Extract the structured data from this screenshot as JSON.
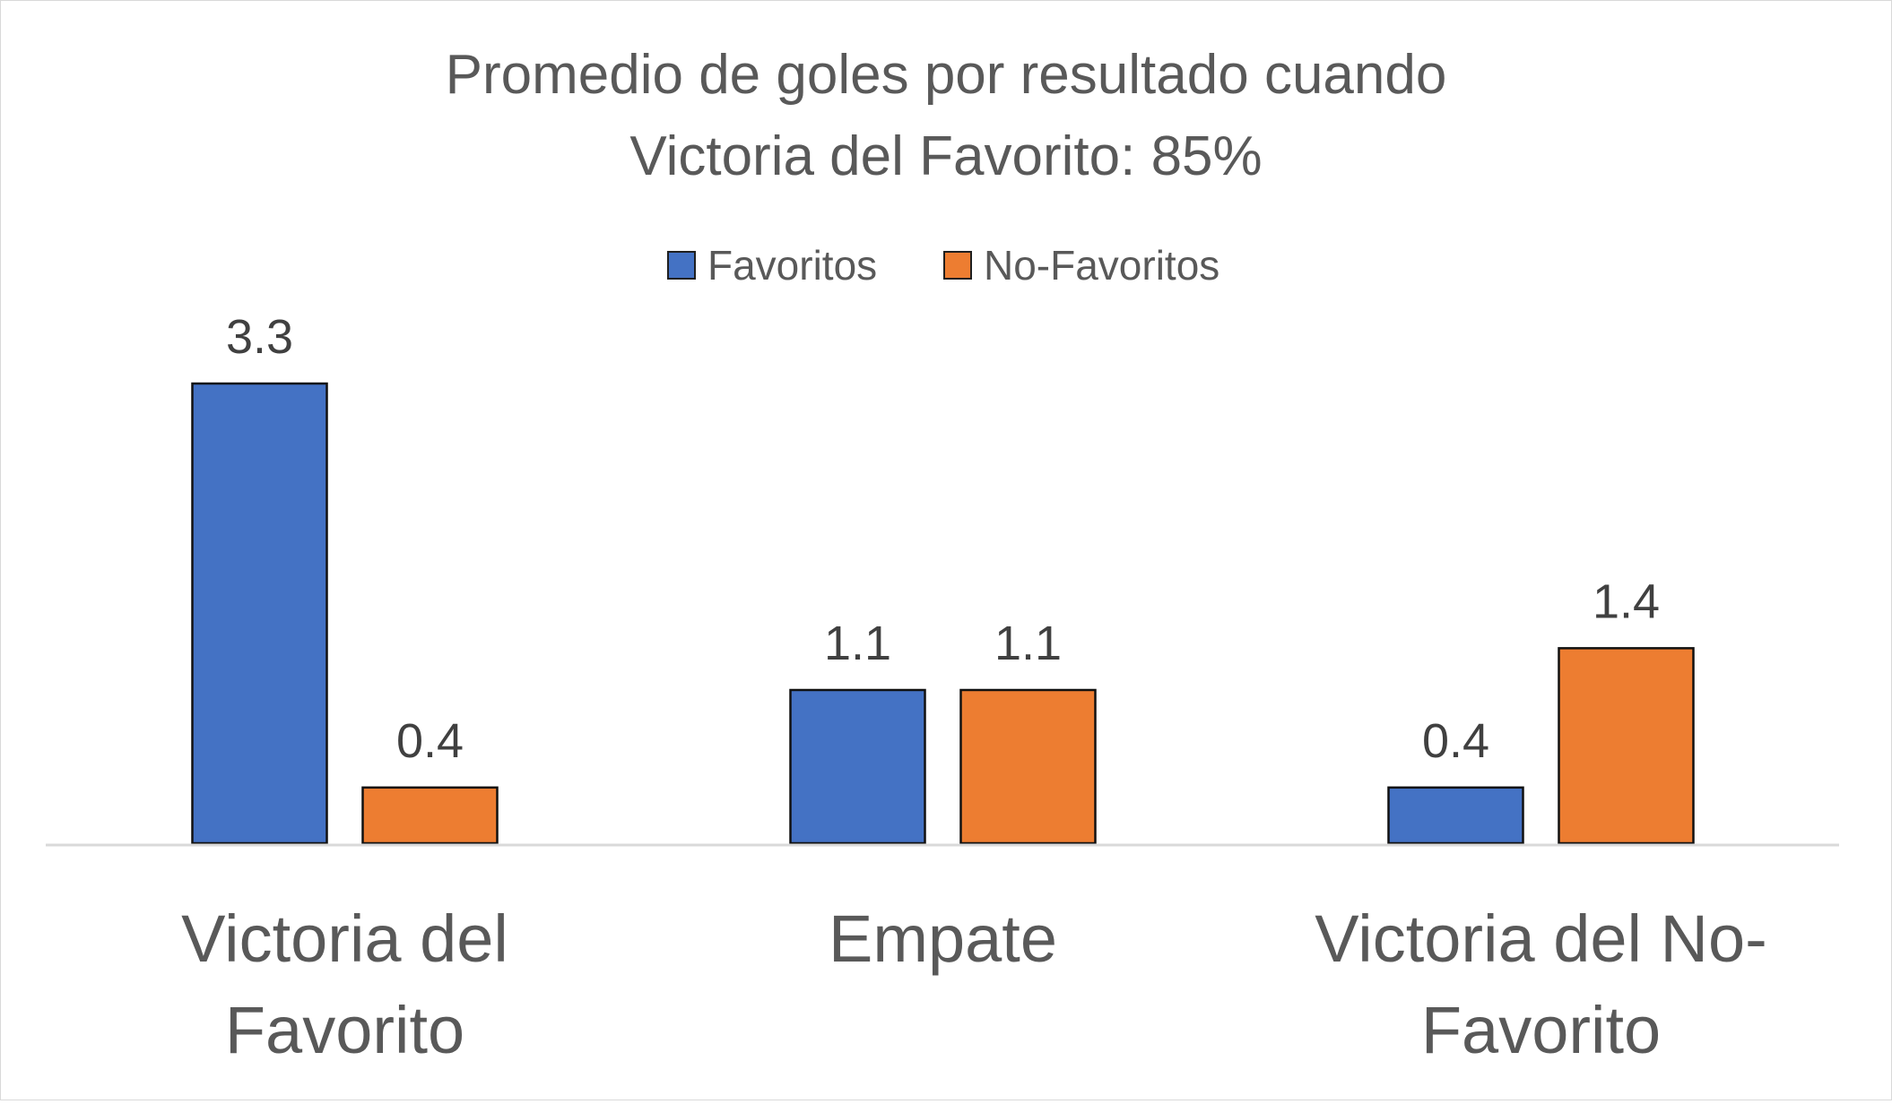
{
  "chart_data": {
    "type": "bar",
    "title_lines": [
      "Promedio de goles por resultado cuando",
      "Victoria del Favorito: 85%"
    ],
    "categories": [
      [
        "Victoria del",
        "Favorito"
      ],
      [
        "Empate"
      ],
      [
        "Victoria del No-",
        "Favorito"
      ]
    ],
    "series": [
      {
        "name": "Favoritos",
        "color": "#4472C4",
        "values": [
          3.3,
          1.1,
          0.4
        ]
      },
      {
        "name": "No-Favoritos",
        "color": "#ED7D31",
        "values": [
          0.4,
          1.1,
          1.4
        ]
      }
    ],
    "xlabel": "",
    "ylabel": "",
    "ylim": [
      0,
      3.3
    ],
    "grid": false,
    "legend_position": "top-center",
    "data_labels": true
  }
}
